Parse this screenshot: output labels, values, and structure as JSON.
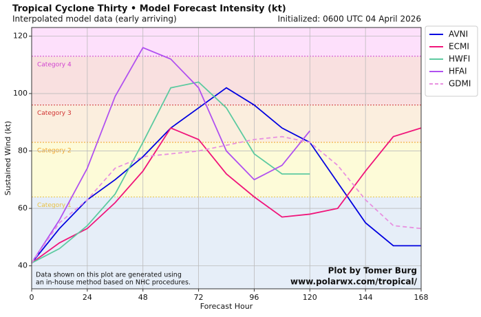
{
  "chart_data": {
    "type": "line",
    "title": "Tropical Cyclone Thirty • Model Forecast Intensity (kt)",
    "subtitle": "Interpolated model data (early arriving)",
    "init_text": "Initialized: 0600 UTC 04 April 2026",
    "xlabel": "Forecast Hour",
    "ylabel": "Sustained Wind (kt)",
    "x": [
      0,
      12,
      24,
      36,
      48,
      60,
      72,
      84,
      96,
      108,
      120,
      132,
      144,
      156,
      168
    ],
    "xlim": [
      0,
      168
    ],
    "xticks": [
      0,
      24,
      48,
      72,
      96,
      120,
      144,
      168
    ],
    "ylim": [
      32,
      123
    ],
    "yticks": [
      40,
      60,
      80,
      100,
      120
    ],
    "grid": true,
    "legend": "outside-right",
    "background": "#e6eef8",
    "bands": [
      {
        "from": 64,
        "label": "Category 1",
        "color": "#fdfbd8",
        "line_color": "#e8c040"
      },
      {
        "from": 83,
        "label": "Category 2",
        "color": "#fbeede",
        "line_color": "#f0a020"
      },
      {
        "from": 96,
        "label": "Category 3",
        "color": "#f9e0e0",
        "line_color": "#d03030"
      },
      {
        "from": 113,
        "label": "Category 4",
        "color": "#fde0fb",
        "line_color": "#d040d0"
      }
    ],
    "series": [
      {
        "name": "AVNI",
        "color": "#0000e0",
        "values": [
          41,
          53,
          63,
          70,
          78,
          88,
          95,
          102,
          96,
          88,
          83,
          69,
          55,
          47,
          47
        ]
      },
      {
        "name": "ECMI",
        "color": "#f0147a",
        "values": [
          41,
          48,
          53,
          62,
          73,
          88,
          84,
          72,
          64,
          57,
          58,
          60,
          73,
          85,
          88
        ]
      },
      {
        "name": "HWFI",
        "color": "#5ccaa0",
        "values": [
          41,
          46,
          54,
          65,
          83,
          102,
          104,
          95,
          79,
          72,
          72,
          null,
          null,
          null,
          null
        ]
      },
      {
        "name": "HFAI",
        "color": "#b050f0",
        "values": [
          41,
          56,
          74,
          99,
          116,
          112,
          102,
          80,
          70,
          75,
          87,
          null,
          null,
          null,
          null
        ]
      },
      {
        "name": "GDMI",
        "color": "#e890e0",
        "dashed": true,
        "values": [
          41,
          55,
          63,
          74,
          78,
          79,
          80,
          82,
          84,
          85,
          83,
          75,
          63,
          54,
          53
        ]
      }
    ],
    "note": [
      "Data shown on this plot are generated using",
      "an in-house method based on NHC procedures."
    ],
    "credit": [
      "Plot by Tomer Burg",
      "www.polarwx.com/tropical/"
    ]
  }
}
